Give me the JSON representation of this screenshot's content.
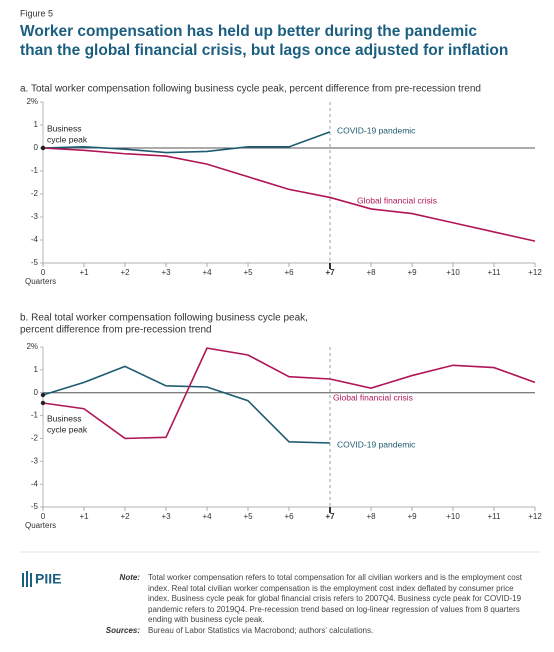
{
  "figure_label": "Figure 5",
  "title": [
    "Worker compensation has held up better during the pandemic",
    "than the global financial crisis, but lags once adjusted for inflation"
  ],
  "chart_data": [
    {
      "type": "line",
      "title": [
        "a. Total worker compensation following business cycle peak, percent difference from pre-recession trend"
      ],
      "x": [
        0,
        1,
        2,
        3,
        4,
        5,
        6,
        7,
        8,
        9,
        10,
        11,
        12
      ],
      "xlim": [
        0,
        12
      ],
      "xticks": [
        0,
        {
          "value": 1,
          "label": "+1"
        },
        {
          "value": 2,
          "label": "+2"
        },
        {
          "value": 3,
          "label": "+3"
        },
        {
          "value": 4,
          "label": "+4"
        },
        {
          "value": 5,
          "label": "+5"
        },
        {
          "value": 6,
          "label": "+6"
        },
        {
          "value": 7,
          "label": "+7"
        },
        {
          "value": 8,
          "label": "+8"
        },
        {
          "value": 9,
          "label": "+9"
        },
        {
          "value": 10,
          "label": "+10"
        },
        {
          "value": 11,
          "label": "+11"
        },
        {
          "value": 12,
          "label": "+12"
        }
      ],
      "xlabel": "Quarters",
      "ylim": [
        -5,
        2
      ],
      "yticks": [
        -5,
        -4,
        -3,
        -2,
        -1,
        0,
        1,
        {
          "value": 2,
          "label": "2%"
        }
      ],
      "zero_line": true,
      "vline": 7,
      "annotation": [
        "Business",
        "cycle peak"
      ],
      "series": [
        {
          "name": "COVID-19 pandemic",
          "color": "#1d5b70",
          "values": [
            0,
            0.05,
            -0.05,
            -0.2,
            -0.15,
            0.05,
            0.05,
            0.7,
            null,
            null,
            null,
            null,
            null
          ]
        },
        {
          "name": "Global financial crisis",
          "color": "#b01657",
          "values": [
            0,
            -0.1,
            -0.25,
            -0.35,
            -0.7,
            -1.25,
            -1.8,
            -2.15,
            -2.65,
            -2.85,
            -3.25,
            -3.65,
            -4.05
          ]
        }
      ]
    },
    {
      "type": "line",
      "title": [
        "b. Real total worker compensation following business cycle peak,",
        "percent difference from pre-recession trend"
      ],
      "x": [
        0,
        1,
        2,
        3,
        4,
        5,
        6,
        7,
        8,
        9,
        10,
        11,
        12
      ],
      "xlim": [
        0,
        12
      ],
      "xticks": [
        0,
        {
          "value": 1,
          "label": "+1"
        },
        {
          "value": 2,
          "label": "+2"
        },
        {
          "value": 3,
          "label": "+3"
        },
        {
          "value": 4,
          "label": "+4"
        },
        {
          "value": 5,
          "label": "+5"
        },
        {
          "value": 6,
          "label": "+6"
        },
        {
          "value": 7,
          "label": "+7"
        },
        {
          "value": 8,
          "label": "+8"
        },
        {
          "value": 9,
          "label": "+9"
        },
        {
          "value": 10,
          "label": "+10"
        },
        {
          "value": 11,
          "label": "+11"
        },
        {
          "value": 12,
          "label": "+12"
        }
      ],
      "xlabel": "Quarters",
      "ylim": [
        -5,
        2
      ],
      "yticks": [
        -5,
        -4,
        -3,
        -2,
        -1,
        0,
        1,
        {
          "value": 2,
          "label": "2%"
        }
      ],
      "zero_line": true,
      "vline": 7,
      "annotation": [
        "Business",
        "cycle peak"
      ],
      "series": [
        {
          "name": "COVID-19 pandemic",
          "color": "#1d5b70",
          "values": [
            -0.1,
            0.45,
            1.15,
            0.3,
            0.25,
            -0.35,
            -2.15,
            -2.2,
            null,
            null,
            null,
            null,
            null
          ]
        },
        {
          "name": "Global financial crisis",
          "color": "#b01657",
          "values": [
            -0.45,
            -0.7,
            -2,
            -1.95,
            1.95,
            1.65,
            0.7,
            0.6,
            0.2,
            0.75,
            1.2,
            1.1,
            0.45
          ]
        }
      ]
    }
  ],
  "logo": "PIIE",
  "note_label": "Note:",
  "note": "Total worker compensation refers to total compensation for all civilian workers and is the employment cost index. Real total civilian worker compensation is the employment cost index deflated by consumer price index. Business cycle peak for global financial crisis refers to 2007Q4. Business cycle peak for COVID-19 pandemic refers to 2019Q4. Pre-recession trend based on log-linear regression of values from 8 quarters ending with business cycle peak.",
  "sources_label": "Sources:",
  "sources": "Bureau of Labor Statistics via Macrobond; authors' calculations."
}
